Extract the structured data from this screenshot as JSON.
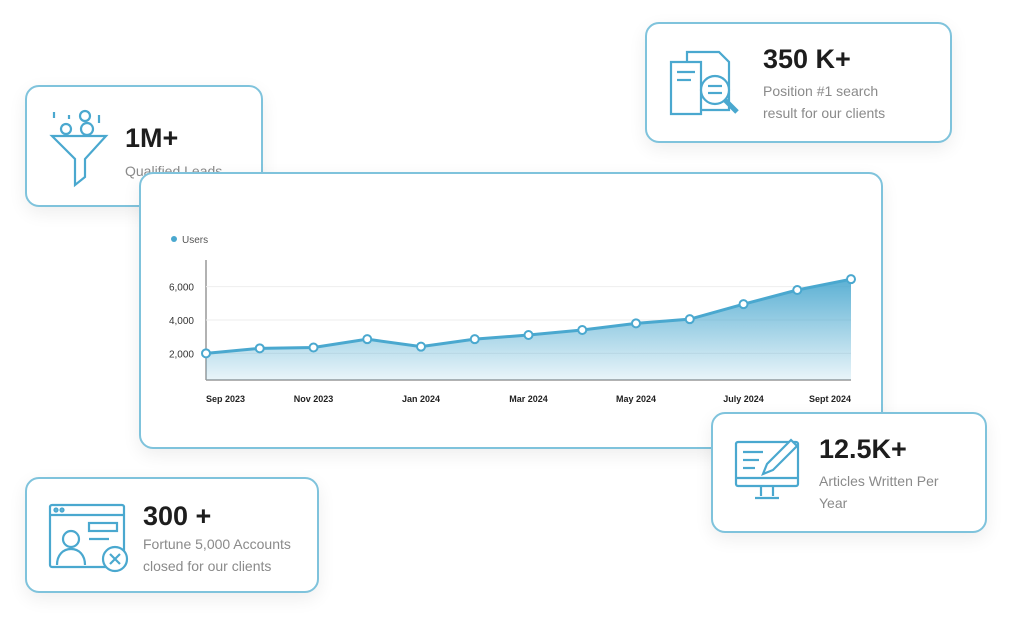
{
  "stats": [
    {
      "value": "1M+",
      "label": "Qualified Leads",
      "icon": "funnel-icon"
    },
    {
      "value": "350 K+",
      "label": "Position #1 search result for our clients",
      "icon": "search-document-icon"
    },
    {
      "value": "12.5K+",
      "label": "Articles Written Per Year",
      "icon": "monitor-pencil-icon"
    },
    {
      "value": "300 +",
      "label": "Fortune 5,000 Accounts closed for our clients",
      "icon": "profile-window-icon"
    }
  ],
  "colors": {
    "accent": "#4aa8cf",
    "border": "#7fc3dc"
  },
  "chart_data": {
    "type": "area",
    "title": "",
    "legend": [
      {
        "name": "Users",
        "position": "top-left"
      }
    ],
    "y_ticks": [
      "2,000",
      "4,000",
      "6,000"
    ],
    "y_tick_values": [
      2000,
      4000,
      6000
    ],
    "x_tick_labels": [
      "Sep 2023",
      "Nov 2023",
      "Jan 2024",
      "Mar 2024",
      "May 2024",
      "July 2024",
      "Sept 2024"
    ],
    "ylim": [
      400,
      7600
    ],
    "grid": true,
    "series": [
      {
        "name": "Users",
        "values": [
          2000,
          2300,
          2350,
          2850,
          2400,
          2850,
          3100,
          3400,
          3800,
          4050,
          4950,
          5800,
          6450
        ]
      }
    ]
  }
}
